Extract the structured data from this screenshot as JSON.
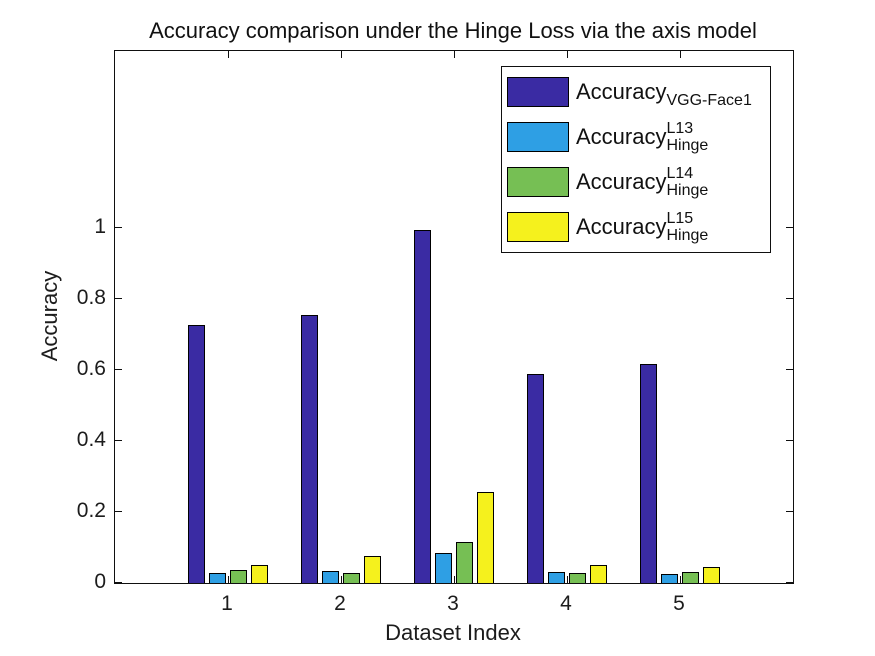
{
  "figure": {
    "background": "#ffffff"
  },
  "chart_data": {
    "type": "bar",
    "title": "Accuracy comparison under the Hinge Loss via the axis model",
    "xlabel": "Dataset Index",
    "ylabel": "Accuracy",
    "categories": [
      "1",
      "2",
      "3",
      "4",
      "5"
    ],
    "series": [
      {
        "name": "accuracy-vgg-face1",
        "label_main": "Accuracy",
        "label_sup": "",
        "label_sub": "VGG-Face1",
        "color": "#3A2BA3",
        "values": [
          0.728,
          0.757,
          0.995,
          0.59,
          0.618
        ]
      },
      {
        "name": "accuracy-hinge-l13",
        "label_main": "Accuracy",
        "label_sup": "L13",
        "label_sub": "Hinge",
        "color": "#2E9FE4",
        "values": [
          0.029,
          0.035,
          0.085,
          0.03,
          0.025
        ]
      },
      {
        "name": "accuracy-hinge-l14",
        "label_main": "Accuracy",
        "label_sup": "L14",
        "label_sub": "Hinge",
        "color": "#76BF54",
        "values": [
          0.037,
          0.027,
          0.115,
          0.027,
          0.032
        ]
      },
      {
        "name": "accuracy-hinge-l15",
        "label_main": "Accuracy",
        "label_sup": "L15",
        "label_sub": "Hinge",
        "color": "#F5F11D",
        "values": [
          0.052,
          0.076,
          0.257,
          0.05,
          0.046
        ]
      }
    ],
    "y_ticks": [
      {
        "label": "0",
        "value": 0
      },
      {
        "label": "0.2",
        "value": 0.2
      },
      {
        "label": "0.4",
        "value": 0.4
      },
      {
        "label": "0.6",
        "value": 0.6
      },
      {
        "label": "0.8",
        "value": 0.8
      },
      {
        "label": "1",
        "value": 1
      }
    ],
    "ylim": [
      0,
      1.5
    ],
    "xlim": [
      0,
      6
    ],
    "grid": false,
    "legend_position": "inside-upper-right",
    "axis_color": "#0f0f0f",
    "text_color": "#1c1c1c"
  }
}
